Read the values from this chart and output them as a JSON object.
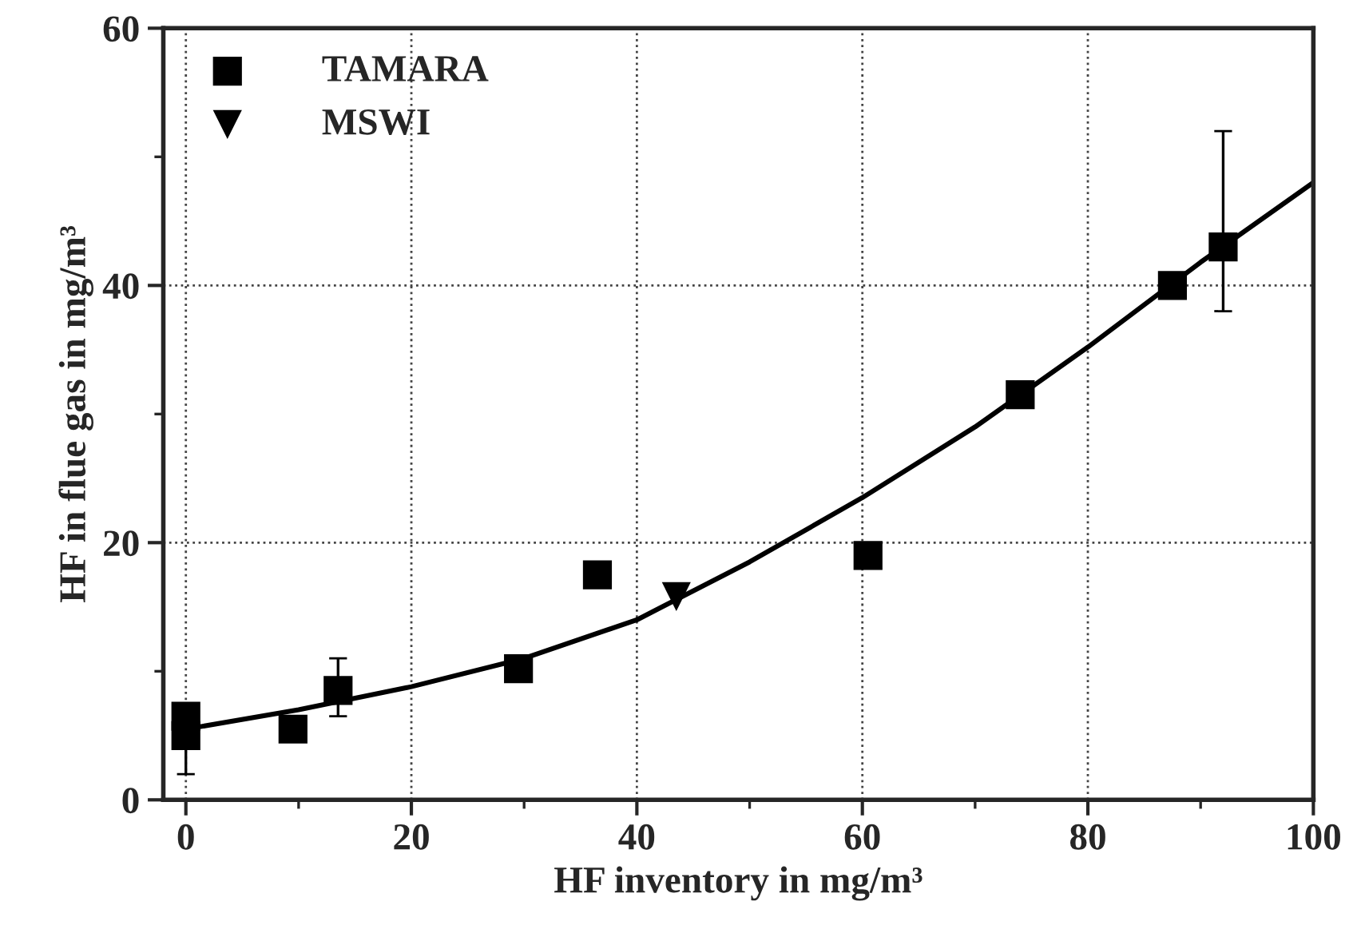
{
  "chart_data": {
    "type": "scatter",
    "xlabel": "HF inventory in mg/m³",
    "ylabel": "HF in flue gas in mg/m³",
    "xlim": [
      -2,
      100
    ],
    "xticks": [
      0,
      20,
      40,
      60,
      80,
      100
    ],
    "ylim": [
      0,
      60
    ],
    "yticks": [
      0,
      20,
      40,
      60
    ],
    "grid": true,
    "legend": "top left",
    "series": [
      {
        "name": "TAMARA",
        "color": "#000000",
        "marker": "square",
        "x": [
          0,
          0,
          9.5,
          13.5,
          29.5,
          36.5,
          60.5,
          74,
          87.5,
          92
        ],
        "values": [
          5,
          6.5,
          5.5,
          8.5,
          10.2,
          17.5,
          19,
          31.5,
          40,
          43
        ],
        "errors": [
          [
            2,
            7.5
          ],
          null,
          null,
          [
            6.5,
            11
          ],
          null,
          null,
          null,
          null,
          null,
          [
            38,
            52
          ]
        ]
      },
      {
        "name": "MSWI",
        "color": "#000000",
        "marker": "triangle",
        "x": [
          43.5
        ],
        "values": [
          15.8
        ]
      },
      {
        "type": "line",
        "color": "#000000",
        "marker": "none",
        "line_style": "solid",
        "x": [
          0,
          10,
          20,
          30,
          40,
          50,
          60,
          70,
          80,
          90,
          100
        ],
        "values": [
          5.5,
          7,
          8.8,
          11,
          14,
          18.5,
          23.5,
          29,
          35.2,
          41.8,
          48
        ]
      }
    ]
  }
}
